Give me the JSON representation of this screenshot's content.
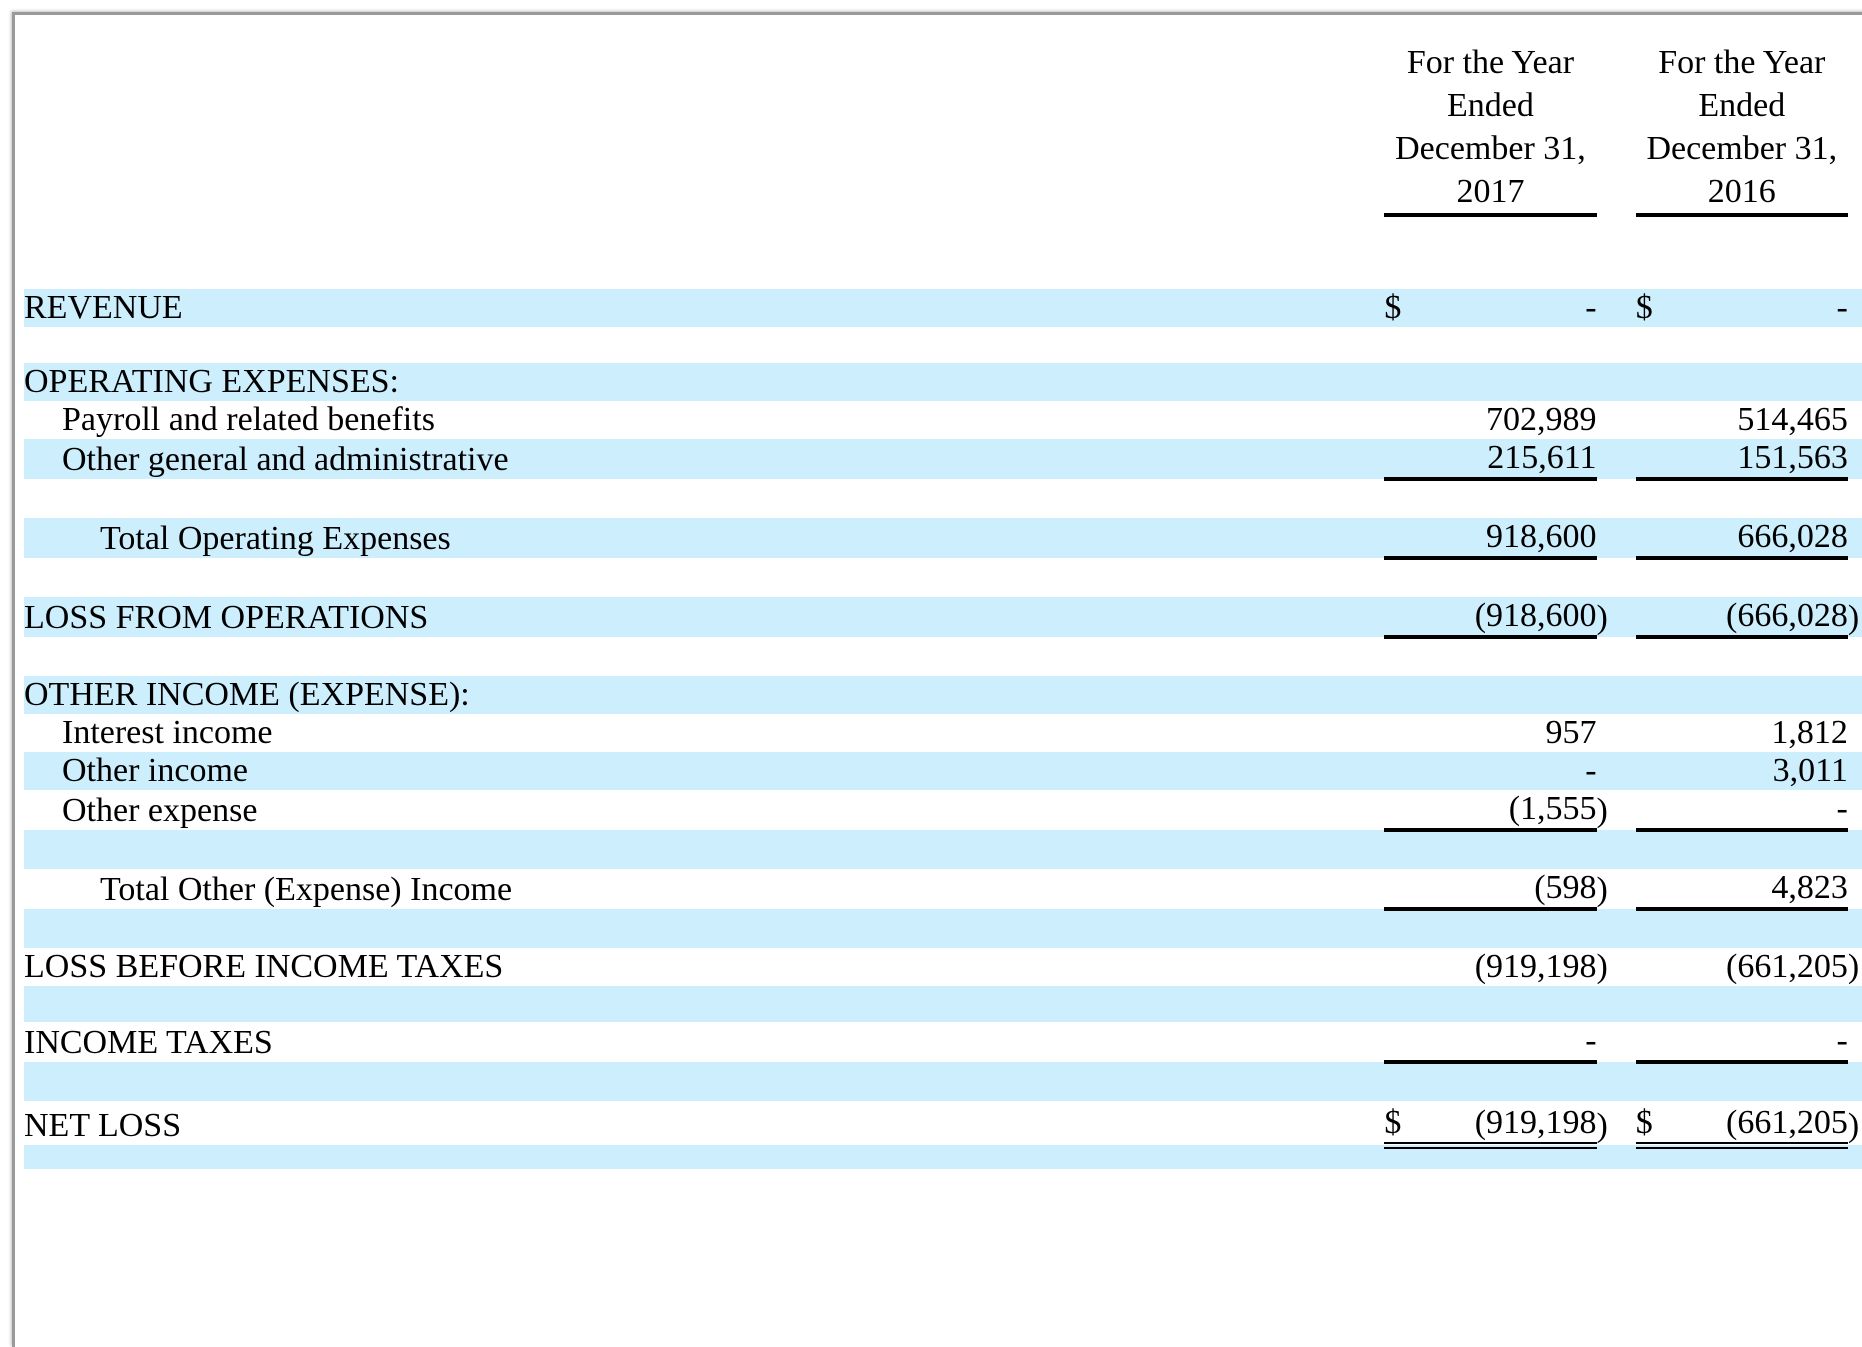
{
  "columns": [
    {
      "header": "For the Year Ended December 31, 2017"
    },
    {
      "header": "For the Year Ended December 31, 2016"
    }
  ],
  "header_lines": [
    [
      "For the Year",
      "Ended",
      "December 31,",
      "2017"
    ],
    [
      "For the Year",
      "Ended",
      "December 31,",
      "2016"
    ]
  ],
  "rows": {
    "revenue": {
      "label": "REVENUE",
      "cur": "$",
      "v2017": "-",
      "v2016": "-"
    },
    "opex_heading": {
      "label": "OPERATING EXPENSES:"
    },
    "payroll": {
      "label": "Payroll and related benefits",
      "v2017": "702,989",
      "v2016": "514,465"
    },
    "other_ga": {
      "label": "Other general and administrative",
      "v2017": "215,611",
      "v2016": "151,563"
    },
    "total_opex": {
      "label": "Total Operating Expenses",
      "v2017": "918,600",
      "v2016": "666,028"
    },
    "loss_ops": {
      "label": "LOSS FROM OPERATIONS",
      "v2017": "(918,600",
      "v2016": "(666,028"
    },
    "other_heading": {
      "label": "OTHER INCOME (EXPENSE):"
    },
    "interest_income": {
      "label": "Interest income",
      "v2017": "957",
      "v2016": "1,812"
    },
    "other_income": {
      "label": "Other income",
      "v2017": "-",
      "v2016": "3,011"
    },
    "other_expense": {
      "label": "Other expense",
      "v2017": "(1,555",
      "v2016": "-"
    },
    "total_other": {
      "label": "Total Other (Expense) Income",
      "v2017": "(598",
      "v2016": "4,823"
    },
    "loss_before_tax": {
      "label": "LOSS BEFORE INCOME TAXES",
      "v2017": "(919,198",
      "v2016": "(661,205"
    },
    "income_taxes": {
      "label": "INCOME TAXES",
      "v2017": "-",
      "v2016": "-"
    },
    "net_loss": {
      "label": "NET LOSS",
      "cur": "$",
      "v2017": "(919,198",
      "v2016": "(661,205"
    }
  },
  "paren": ")",
  "colors": {
    "row_highlight": "#cdeefd",
    "text": "#000000"
  }
}
